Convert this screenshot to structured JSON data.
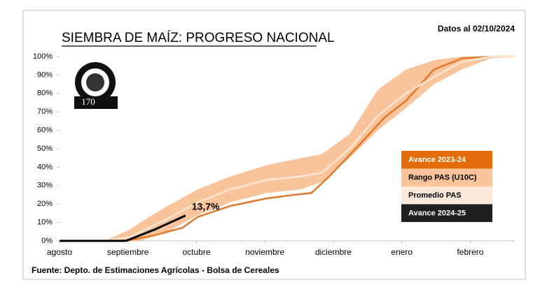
{
  "chart_data": {
    "type": "line",
    "title": "SIEMBRA DE MAÍZ: PROGRESO NACIONAL",
    "subtitle": "Datos al 02/10/2024",
    "source": "Fuente: Depto. de Estimaciones Agrícolas - Bolsa de Cereales",
    "logo_text": "170",
    "xlim": [
      0,
      6.65
    ],
    "xticks": [
      {
        "value": 0,
        "label": "agosto"
      },
      {
        "value": 1,
        "label": "septiembre"
      },
      {
        "value": 2,
        "label": "octubre"
      },
      {
        "value": 3,
        "label": "noviembre"
      },
      {
        "value": 4,
        "label": "diciembre"
      },
      {
        "value": 5,
        "label": "enero"
      },
      {
        "value": 6,
        "label": "febrero"
      }
    ],
    "ylim": [
      0,
      100
    ],
    "yticks": [
      {
        "value": 0,
        "label": "0%"
      },
      {
        "value": 10,
        "label": "10%"
      },
      {
        "value": 20,
        "label": "20%"
      },
      {
        "value": 30,
        "label": "30%"
      },
      {
        "value": 40,
        "label": "40%"
      },
      {
        "value": 50,
        "label": "50%"
      },
      {
        "value": 60,
        "label": "60%"
      },
      {
        "value": 70,
        "label": "70%"
      },
      {
        "value": 80,
        "label": "80%"
      },
      {
        "value": 90,
        "label": "90%"
      },
      {
        "value": 100,
        "label": "100%"
      }
    ],
    "grid": false,
    "series": [
      {
        "name": "Avance 2023-24",
        "color": "#e07b2e",
        "legend_bg": "#e46c0a",
        "legend_fg": "#ffffff",
        "x": [
          0,
          0.97,
          1.38,
          1.79,
          2.02,
          2.5,
          3.02,
          3.43,
          3.68,
          3.94,
          4.35,
          4.75,
          5.06,
          5.47,
          5.88,
          6.29,
          6.65
        ],
        "values": [
          0,
          0,
          3,
          7,
          13,
          19,
          23,
          25,
          26,
          35,
          51,
          67,
          76,
          93,
          99,
          100,
          100
        ]
      },
      {
        "name": "Rango PAS (U10C)",
        "color": "#f9c49b",
        "legend_bg": "#f9c49b",
        "legend_fg": "#000000",
        "x": [
          0,
          0.66,
          1.02,
          1.18,
          1.58,
          2.02,
          2.5,
          3.02,
          3.53,
          3.83,
          4.24,
          4.65,
          5.06,
          5.47,
          5.88,
          6.29,
          6.65
        ],
        "low": [
          0,
          0,
          0,
          0,
          5,
          14,
          21,
          26,
          28,
          32,
          45,
          60,
          72,
          85,
          93,
          99,
          100
        ],
        "high": [
          0,
          0,
          6,
          10,
          19,
          28,
          35,
          41,
          45,
          47,
          58,
          82,
          93,
          98,
          100,
          100,
          100
        ]
      },
      {
        "name": "Promedio PAS",
        "color": "#fde4d0",
        "legend_bg": "#fde9d9",
        "legend_fg": "#000000",
        "x": [
          0,
          0.66,
          1.02,
          1.58,
          2.02,
          2.5,
          3.02,
          3.53,
          3.83,
          4.24,
          4.65,
          5.06,
          5.47,
          5.88,
          6.29,
          6.65
        ],
        "values": [
          0,
          0,
          2,
          12,
          21,
          28,
          33,
          35,
          37,
          50,
          68,
          80,
          89,
          97,
          100,
          100
        ]
      },
      {
        "name": "Avance 2024-25",
        "color": "#000000",
        "legend_bg": "#1f1f1f",
        "legend_fg": "#ffffff",
        "x": [
          0,
          0.97,
          1.38,
          1.84
        ],
        "values": [
          0,
          0,
          6,
          13.7
        ],
        "value_labels": [
          null,
          null,
          null,
          "13,7%"
        ]
      }
    ]
  }
}
